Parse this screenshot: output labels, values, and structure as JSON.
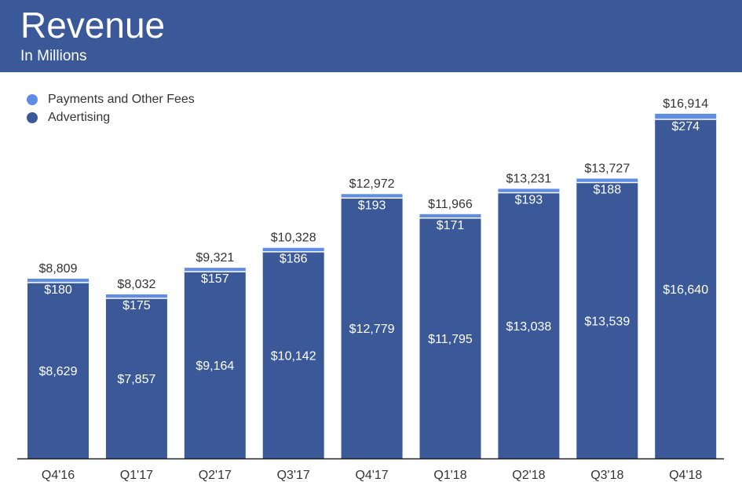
{
  "header": {
    "title": "Revenue",
    "subtitle": "In Millions"
  },
  "legend": [
    {
      "label": "Payments and Other Fees",
      "color": "#5f8de6"
    },
    {
      "label": "Advertising",
      "color": "#3b5998"
    }
  ],
  "chart_data": {
    "type": "bar",
    "stacked": true,
    "categories": [
      "Q4'16",
      "Q1'17",
      "Q2'17",
      "Q3'17",
      "Q4'17",
      "Q1'18",
      "Q2'18",
      "Q3'18",
      "Q4'18"
    ],
    "series": [
      {
        "name": "Advertising",
        "color": "#3b5998",
        "values": [
          8629,
          7857,
          9164,
          10142,
          12779,
          11795,
          13038,
          13539,
          16640
        ],
        "labels": [
          "$8,629",
          "$7,857",
          "$9,164",
          "$10,142",
          "$12,779",
          "$11,795",
          "$13,038",
          "$13,539",
          "$16,640"
        ]
      },
      {
        "name": "Payments and Other Fees",
        "color": "#5f8de6",
        "values": [
          180,
          175,
          157,
          186,
          193,
          171,
          193,
          188,
          274
        ],
        "labels": [
          "$180",
          "$175",
          "$157",
          "$186",
          "$193",
          "$171",
          "$193",
          "$188",
          "$274"
        ]
      }
    ],
    "totals": [
      8809,
      8032,
      9321,
      10328,
      12972,
      11966,
      13231,
      13727,
      16914
    ],
    "total_labels": [
      "$8,809",
      "$8,032",
      "$9,321",
      "$10,328",
      "$12,972",
      "$11,966",
      "$13,231",
      "$13,727",
      "$16,914"
    ],
    "ylim": [
      0,
      17000
    ],
    "grid": false,
    "legend_position": "top-left"
  }
}
